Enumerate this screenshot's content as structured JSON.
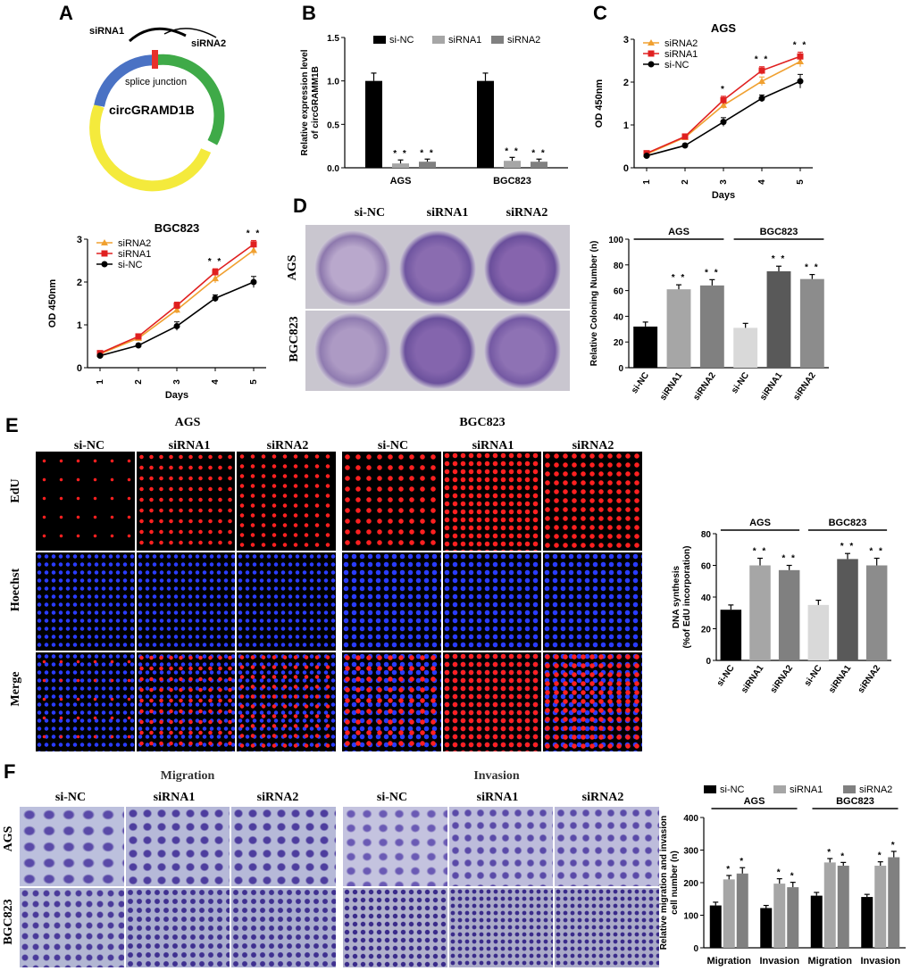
{
  "panels": {
    "A": "A",
    "B": "B",
    "C": "C",
    "D": "D",
    "E": "E",
    "F": "F"
  },
  "panelA": {
    "sirna1": "siRNA1",
    "sirna2": "siRNA2",
    "junction": "splice junction",
    "circ": "circGRAMD1B"
  },
  "panelD": {
    "cols": [
      "si-NC",
      "siRNA1",
      "siRNA2"
    ],
    "rows": [
      "AGS",
      "BGC823"
    ]
  },
  "panelE": {
    "groups": [
      "AGS",
      "BGC823"
    ],
    "cols": [
      "si-NC",
      "siRNA1",
      "siRNA2"
    ],
    "rows": [
      "EdU",
      "Hoechst",
      "Merge"
    ]
  },
  "panelF": {
    "groups": [
      "Migration",
      "Invasion"
    ],
    "cols": [
      "si-NC",
      "siRNA1",
      "siRNA2"
    ],
    "rows": [
      "AGS",
      "BGC823"
    ]
  },
  "chart_data": [
    {
      "id": "B",
      "type": "bar",
      "categories": [
        "AGS",
        "BGC823"
      ],
      "series": [
        {
          "name": "si-NC",
          "values": [
            1.0,
            1.0
          ],
          "err": [
            0.09,
            0.09
          ],
          "color": "#000000"
        },
        {
          "name": "siRNA1",
          "values": [
            0.05,
            0.08
          ],
          "err": [
            0.04,
            0.04
          ],
          "color": "#a6a6a6"
        },
        {
          "name": "siRNA2",
          "values": [
            0.07,
            0.07
          ],
          "err": [
            0.03,
            0.03
          ],
          "color": "#808080"
        }
      ],
      "sig": [
        [
          "",
          "**",
          "**"
        ],
        [
          "",
          "**",
          "**"
        ]
      ],
      "ylabel": "Relative expression level\nof circGRAMM1B",
      "ylim": [
        0,
        1.5
      ],
      "yticks": [
        0,
        0.5,
        1.0,
        1.5
      ],
      "legend": "top"
    },
    {
      "id": "C",
      "type": "line",
      "title": "AGS",
      "x": [
        1,
        2,
        3,
        4,
        5
      ],
      "series": [
        {
          "name": "siRNA2",
          "values": [
            0.32,
            0.71,
            1.46,
            2.02,
            2.48
          ],
          "err": [
            0.03,
            0.04,
            0.08,
            0.1,
            0.12
          ],
          "color": "#f0a030",
          "marker": "triangle"
        },
        {
          "name": "siRNA1",
          "values": [
            0.34,
            0.73,
            1.58,
            2.27,
            2.6
          ],
          "err": [
            0.03,
            0.04,
            0.09,
            0.09,
            0.1
          ],
          "color": "#e02020",
          "marker": "square"
        },
        {
          "name": "si-NC",
          "values": [
            0.28,
            0.52,
            1.07,
            1.62,
            2.02
          ],
          "err": [
            0.03,
            0.04,
            0.1,
            0.08,
            0.16
          ],
          "color": "#000000",
          "marker": "circle"
        }
      ],
      "sig": [
        "",
        "",
        "*",
        "**",
        "**"
      ],
      "xlabel": "Days",
      "ylabel": "OD 450nm",
      "ylim": [
        0,
        3
      ],
      "yticks": [
        0,
        1,
        2,
        3
      ],
      "legend": "top-left"
    },
    {
      "id": "BGC",
      "type": "line",
      "title": "BGC823",
      "x": [
        1,
        2,
        3,
        4,
        5
      ],
      "series": [
        {
          "name": "siRNA2",
          "values": [
            0.32,
            0.69,
            1.35,
            2.08,
            2.74
          ],
          "err": [
            0.03,
            0.04,
            0.08,
            0.1,
            0.12
          ],
          "color": "#f0a030",
          "marker": "triangle"
        },
        {
          "name": "siRNA1",
          "values": [
            0.34,
            0.73,
            1.45,
            2.23,
            2.88
          ],
          "err": [
            0.03,
            0.04,
            0.08,
            0.08,
            0.09
          ],
          "color": "#e02020",
          "marker": "square"
        },
        {
          "name": "si-NC",
          "values": [
            0.28,
            0.52,
            0.97,
            1.62,
            2.0
          ],
          "err": [
            0.03,
            0.04,
            0.1,
            0.08,
            0.13
          ],
          "color": "#000000",
          "marker": "circle"
        }
      ],
      "sig": [
        "",
        "",
        "",
        "**",
        "**"
      ],
      "xlabel": "Days",
      "ylabel": "OD 450nm",
      "ylim": [
        0,
        3
      ],
      "yticks": [
        0,
        1,
        2,
        3
      ],
      "legend": "top-left"
    },
    {
      "id": "Dbar",
      "type": "bar",
      "categories": [
        "si-NC",
        "siRNA1",
        "siRNA2",
        "si-NC",
        "siRNA1",
        "siRNA2"
      ],
      "values": [
        32,
        61,
        64,
        31,
        75,
        69
      ],
      "err": [
        3.5,
        3.5,
        4.5,
        3.5,
        4,
        3.5
      ],
      "colors": [
        "#000000",
        "#a6a6a6",
        "#808080",
        "#d9d9d9",
        "#595959",
        "#8c8c8c"
      ],
      "sig": [
        "",
        "**",
        "**",
        "",
        "**",
        "**"
      ],
      "groups": [
        {
          "label": "AGS",
          "span": [
            0,
            2
          ]
        },
        {
          "label": "BGC823",
          "span": [
            3,
            5
          ]
        }
      ],
      "ylabel": "Relative Coloning Number (n)",
      "ylim": [
        0,
        100
      ],
      "yticks": [
        0,
        20,
        40,
        60,
        80,
        100
      ]
    },
    {
      "id": "Ebar",
      "type": "bar",
      "categories": [
        "si-NC",
        "siRNA1",
        "siRNA2",
        "si-NC",
        "siRNA1",
        "siRNA2"
      ],
      "values": [
        32,
        60,
        57,
        35,
        64,
        60
      ],
      "err": [
        3,
        4.5,
        3,
        3,
        3.5,
        4.5
      ],
      "colors": [
        "#000000",
        "#a6a6a6",
        "#808080",
        "#d9d9d9",
        "#595959",
        "#8c8c8c"
      ],
      "sig": [
        "",
        "**",
        "**",
        "",
        "**",
        "**"
      ],
      "groups": [
        {
          "label": "AGS",
          "span": [
            0,
            2
          ]
        },
        {
          "label": "BGC823",
          "span": [
            3,
            5
          ]
        }
      ],
      "ylabel": "DNA synthesis\n(%of EdU incorporation)",
      "ylim": [
        0,
        80
      ],
      "yticks": [
        0,
        20,
        40,
        60,
        80
      ]
    },
    {
      "id": "Fbar",
      "type": "bar",
      "categories": [
        "Migration",
        "Invasion",
        "Migration",
        "Invasion"
      ],
      "series": [
        {
          "name": "si-NC",
          "values": [
            130,
            122,
            160,
            156
          ],
          "err": [
            10,
            8,
            10,
            8
          ],
          "color": "#000000"
        },
        {
          "name": "siRNA1",
          "values": [
            210,
            197,
            262,
            252
          ],
          "err": [
            12,
            15,
            12,
            12
          ],
          "color": "#a6a6a6"
        },
        {
          "name": "siRNA2",
          "values": [
            228,
            186,
            252,
            278
          ],
          "err": [
            18,
            15,
            10,
            18
          ],
          "color": "#808080"
        }
      ],
      "sig": [
        [
          "",
          "*",
          "*"
        ],
        [
          "",
          "*",
          "*"
        ],
        [
          "",
          "*",
          "*"
        ],
        [
          "",
          "*",
          "*"
        ]
      ],
      "groups": [
        {
          "label": "AGS",
          "span": [
            0,
            1
          ]
        },
        {
          "label": "BGC823",
          "span": [
            2,
            3
          ]
        }
      ],
      "ylabel": "Relative migration and invasion\ncell number (n)",
      "ylim": [
        0,
        400
      ],
      "yticks": [
        0,
        100,
        200,
        300,
        400
      ],
      "legend": "top"
    }
  ]
}
